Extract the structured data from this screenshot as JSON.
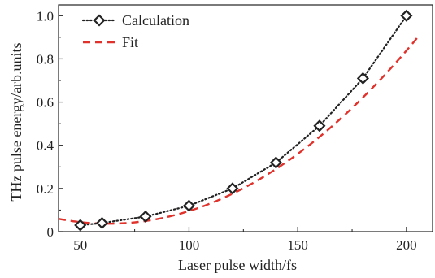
{
  "chart_data": {
    "type": "line",
    "title": "",
    "xlabel": "Laser pulse width/fs",
    "ylabel": "THz pulse energy/arb.units",
    "xlim": [
      40,
      212
    ],
    "ylim": [
      0,
      1.05
    ],
    "xticks": [
      50,
      100,
      150,
      200
    ],
    "yticks": [
      0,
      0.2,
      0.4,
      0.6,
      0.8,
      1.0
    ],
    "xtick_labels": [
      "50",
      "100",
      "150",
      "200"
    ],
    "ytick_labels": [
      "0",
      "0.2",
      "0.4",
      "0.6",
      "0.8",
      "1.0"
    ],
    "grid": false,
    "legend_position": "top-left",
    "series": [
      {
        "name": "Calculation",
        "style": "dotted",
        "marker": "diamond",
        "color": "#222222",
        "x": [
          50,
          60,
          80,
          100,
          120,
          140,
          160,
          180,
          200
        ],
        "y": [
          0.03,
          0.04,
          0.07,
          0.12,
          0.2,
          0.32,
          0.49,
          0.71,
          1.0
        ]
      },
      {
        "name": "Fit",
        "style": "dashed",
        "color": "#e0312b",
        "fit": {
          "kind": "quadratic",
          "a": 4.27e-05,
          "x0": 63,
          "c": 0.037
        },
        "x_range": [
          40,
          205
        ]
      }
    ]
  }
}
